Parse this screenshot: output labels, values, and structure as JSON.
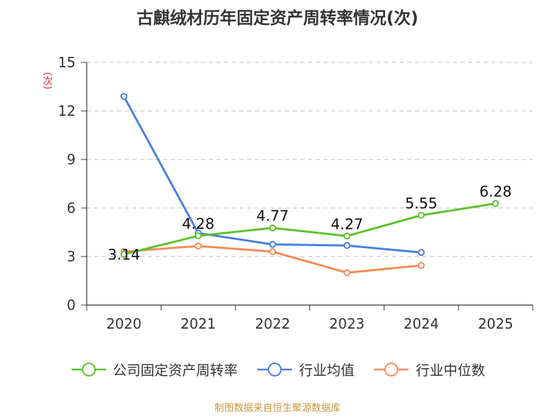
{
  "title": "古麒绒材历年固定资产周转率情况(次)",
  "source": "制图数据来自恒生聚源数据库",
  "chart_data": {
    "type": "line",
    "title": "古麒绒材历年固定资产周转率情况(次)",
    "ylabel": "(次)",
    "xlabel": "",
    "categories": [
      "2020",
      "2021",
      "2022",
      "2023",
      "2024",
      "2025"
    ],
    "ylim": [
      0,
      15
    ],
    "yticks": [
      0,
      3,
      6,
      9,
      12,
      15
    ],
    "grid": true,
    "legend_position": "bottom",
    "series": [
      {
        "name": "公司固定资产周转率",
        "color": "#5bc22c",
        "values": [
          3.14,
          4.28,
          4.77,
          4.27,
          5.55,
          6.28
        ],
        "labels": [
          "3.14",
          "4.28",
          "4.77",
          "4.27",
          "5.55",
          "6.28"
        ]
      },
      {
        "name": "行业均值",
        "color": "#4a7fdc",
        "values": [
          12.9,
          4.45,
          3.75,
          3.68,
          3.25,
          null
        ]
      },
      {
        "name": "行业中位数",
        "color": "#f58c55",
        "values": [
          3.3,
          3.65,
          3.3,
          2.0,
          2.45,
          null
        ]
      }
    ]
  }
}
